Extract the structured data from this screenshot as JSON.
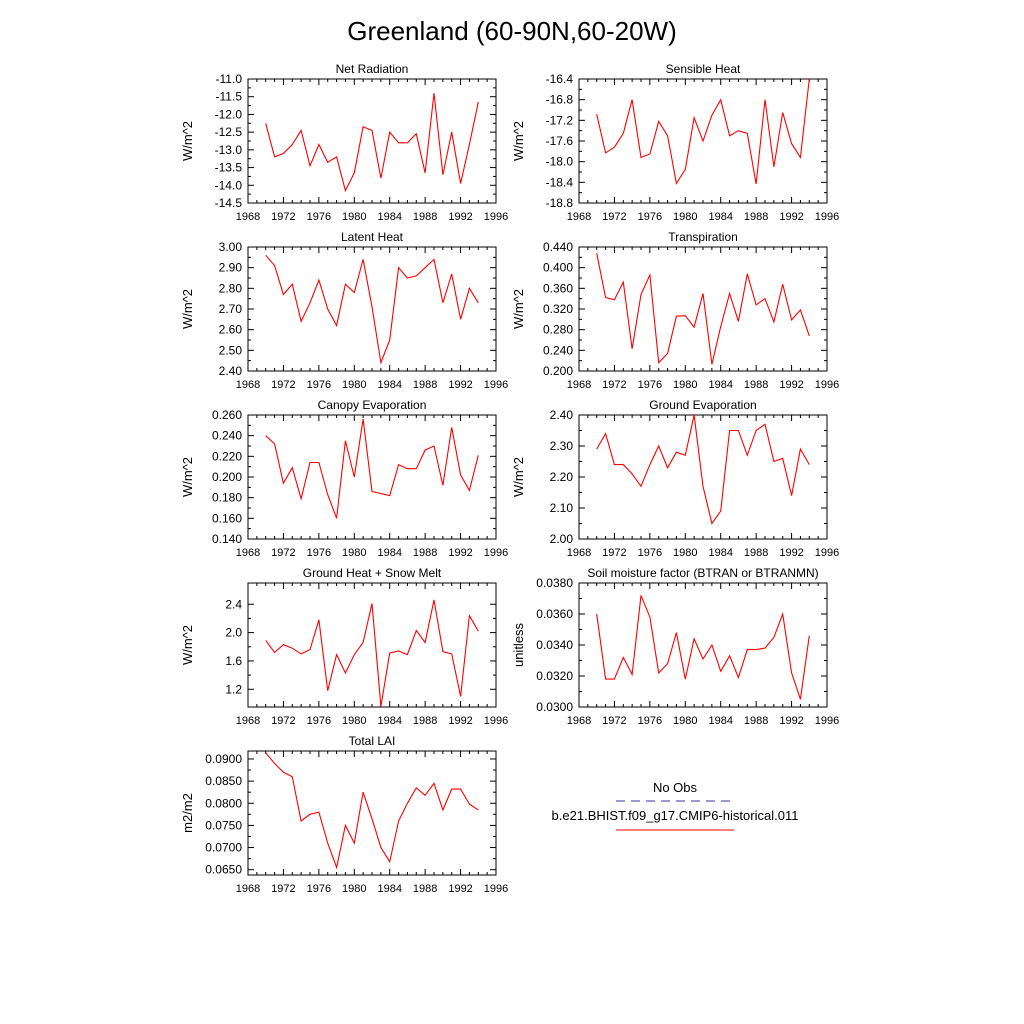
{
  "title": "Greenland (60-90N,60-20W)",
  "legend": {
    "entries": [
      {
        "label": "No Obs",
        "color": "#3333aa",
        "style": "dashed"
      },
      {
        "label": "b.e21.BHIST.f09_g17.CMIP6-historical.011",
        "color": "#ff0000",
        "style": "solid"
      }
    ]
  },
  "chart_data": [
    {
      "type": "line",
      "title": "Net Radiation",
      "ylabel": "W/m^2",
      "xlim": [
        1968,
        1996
      ],
      "ylim": [
        -14.5,
        -11.0
      ],
      "xticks": [
        1968,
        1972,
        1976,
        1980,
        1984,
        1988,
        1992,
        1996
      ],
      "xtick_labels": [
        "1968",
        "1972",
        "1976",
        "1980",
        "1984",
        "1988",
        "1992",
        "1996"
      ],
      "yticks": [
        -14.5,
        -14.0,
        -13.5,
        -13.0,
        -12.5,
        -12.0,
        -11.5,
        -11.0
      ],
      "ytick_labels": [
        "-14.5",
        "-14.0",
        "-13.5",
        "-13.0",
        "-12.5",
        "-12.0",
        "-11.5",
        "-11.0"
      ],
      "line_color": "#ff0000",
      "x": [
        1970,
        1971,
        1972,
        1973,
        1974,
        1975,
        1976,
        1977,
        1978,
        1979,
        1980,
        1981,
        1982,
        1983,
        1984,
        1985,
        1986,
        1987,
        1988,
        1989,
        1990,
        1991,
        1992,
        1993,
        1994
      ],
      "values": [
        -12.25,
        -13.2,
        -13.1,
        -12.85,
        -12.45,
        -13.45,
        -12.85,
        -13.35,
        -13.2,
        -14.15,
        -13.65,
        -12.35,
        -12.45,
        -13.8,
        -12.5,
        -12.8,
        -12.8,
        -12.55,
        -13.65,
        -11.4,
        -13.7,
        -12.5,
        -13.95,
        -12.85,
        -11.65
      ]
    },
    {
      "type": "line",
      "title": "Sensible Heat",
      "ylabel": "W/m^2",
      "xlim": [
        1968,
        1996
      ],
      "ylim": [
        -18.8,
        -16.4
      ],
      "xticks": [
        1968,
        1972,
        1976,
        1980,
        1984,
        1988,
        1992,
        1996
      ],
      "xtick_labels": [
        "1968",
        "1972",
        "1976",
        "1980",
        "1984",
        "1988",
        "1992",
        "1996"
      ],
      "yticks": [
        -18.8,
        -18.4,
        -18.0,
        -17.6,
        -17.2,
        -16.8,
        -16.4
      ],
      "ytick_labels": [
        "-18.8",
        "-18.4",
        "-18.0",
        "-17.6",
        "-17.2",
        "-16.8",
        "-16.4"
      ],
      "line_color": "#ff0000",
      "x": [
        1970,
        1971,
        1972,
        1973,
        1974,
        1975,
        1976,
        1977,
        1978,
        1979,
        1980,
        1981,
        1982,
        1983,
        1984,
        1985,
        1986,
        1987,
        1988,
        1989,
        1990,
        1991,
        1992,
        1993,
        1994
      ],
      "values": [
        -17.08,
        -17.83,
        -17.72,
        -17.45,
        -16.8,
        -17.92,
        -17.85,
        -17.22,
        -17.5,
        -18.42,
        -18.15,
        -17.15,
        -17.6,
        -17.1,
        -16.8,
        -17.5,
        -17.4,
        -17.45,
        -18.43,
        -16.8,
        -18.1,
        -17.05,
        -17.65,
        -17.92,
        -16.4
      ]
    },
    {
      "type": "line",
      "title": "Latent Heat",
      "ylabel": "W/m^2",
      "xlim": [
        1968,
        1996
      ],
      "ylim": [
        2.4,
        3.0
      ],
      "xticks": [
        1968,
        1972,
        1976,
        1980,
        1984,
        1988,
        1992,
        1996
      ],
      "xtick_labels": [
        "1968",
        "1972",
        "1976",
        "1980",
        "1984",
        "1988",
        "1992",
        "1996"
      ],
      "yticks": [
        2.4,
        2.5,
        2.6,
        2.7,
        2.8,
        2.9,
        3.0
      ],
      "ytick_labels": [
        "2.40",
        "2.50",
        "2.60",
        "2.70",
        "2.80",
        "2.90",
        "3.00"
      ],
      "line_color": "#ff0000",
      "x": [
        1970,
        1971,
        1972,
        1973,
        1974,
        1975,
        1976,
        1977,
        1978,
        1979,
        1980,
        1981,
        1982,
        1983,
        1984,
        1985,
        1986,
        1987,
        1988,
        1989,
        1990,
        1991,
        1992,
        1993,
        1994
      ],
      "values": [
        2.96,
        2.91,
        2.77,
        2.82,
        2.64,
        2.73,
        2.84,
        2.7,
        2.62,
        2.82,
        2.78,
        2.94,
        2.71,
        2.44,
        2.55,
        2.9,
        2.85,
        2.86,
        2.9,
        2.94,
        2.73,
        2.87,
        2.65,
        2.8,
        2.73
      ]
    },
    {
      "type": "line",
      "title": "Transpiration",
      "ylabel": "W/m^2",
      "xlim": [
        1968,
        1996
      ],
      "ylim": [
        0.2,
        0.44
      ],
      "xticks": [
        1968,
        1972,
        1976,
        1980,
        1984,
        1988,
        1992,
        1996
      ],
      "xtick_labels": [
        "1968",
        "1972",
        "1976",
        "1980",
        "1984",
        "1988",
        "1992",
        "1996"
      ],
      "yticks": [
        0.2,
        0.24,
        0.28,
        0.32,
        0.36,
        0.4,
        0.44
      ],
      "ytick_labels": [
        "0.200",
        "0.240",
        "0.280",
        "0.320",
        "0.360",
        "0.400",
        "0.440"
      ],
      "line_color": "#ff0000",
      "x": [
        1970,
        1971,
        1972,
        1973,
        1974,
        1975,
        1976,
        1977,
        1978,
        1979,
        1980,
        1981,
        1982,
        1983,
        1984,
        1985,
        1986,
        1987,
        1988,
        1989,
        1990,
        1991,
        1992,
        1993,
        1994
      ],
      "values": [
        0.428,
        0.342,
        0.338,
        0.372,
        0.243,
        0.348,
        0.386,
        0.216,
        0.234,
        0.306,
        0.307,
        0.285,
        0.35,
        0.213,
        0.286,
        0.35,
        0.296,
        0.388,
        0.328,
        0.34,
        0.295,
        0.368,
        0.299,
        0.318,
        0.268
      ]
    },
    {
      "type": "line",
      "title": "Canopy Evaporation",
      "ylabel": "W/m^2",
      "xlim": [
        1968,
        1996
      ],
      "ylim": [
        0.14,
        0.26
      ],
      "xticks": [
        1968,
        1972,
        1976,
        1980,
        1984,
        1988,
        1992,
        1996
      ],
      "xtick_labels": [
        "1968",
        "1972",
        "1976",
        "1980",
        "1984",
        "1988",
        "1992",
        "1996"
      ],
      "yticks": [
        0.14,
        0.16,
        0.18,
        0.2,
        0.22,
        0.24,
        0.26
      ],
      "ytick_labels": [
        "0.140",
        "0.160",
        "0.180",
        "0.200",
        "0.220",
        "0.240",
        "0.260"
      ],
      "line_color": "#ff0000",
      "x": [
        1970,
        1971,
        1972,
        1973,
        1974,
        1975,
        1976,
        1977,
        1978,
        1979,
        1980,
        1981,
        1982,
        1983,
        1984,
        1985,
        1986,
        1987,
        1988,
        1989,
        1990,
        1991,
        1992,
        1993,
        1994
      ],
      "values": [
        0.24,
        0.232,
        0.194,
        0.209,
        0.179,
        0.214,
        0.214,
        0.183,
        0.16,
        0.235,
        0.2,
        0.256,
        0.186,
        0.184,
        0.182,
        0.212,
        0.208,
        0.208,
        0.226,
        0.23,
        0.192,
        0.248,
        0.202,
        0.187,
        0.221
      ]
    },
    {
      "type": "line",
      "title": "Ground Evaporation",
      "ylabel": "W/m^2",
      "xlim": [
        1968,
        1996
      ],
      "ylim": [
        2.0,
        2.4
      ],
      "xticks": [
        1968,
        1972,
        1976,
        1980,
        1984,
        1988,
        1992,
        1996
      ],
      "xtick_labels": [
        "1968",
        "1972",
        "1976",
        "1980",
        "1984",
        "1988",
        "1992",
        "1996"
      ],
      "yticks": [
        2.0,
        2.1,
        2.2,
        2.3,
        2.4
      ],
      "ytick_labels": [
        "2.00",
        "2.10",
        "2.20",
        "2.30",
        "2.40"
      ],
      "line_color": "#ff0000",
      "x": [
        1970,
        1971,
        1972,
        1973,
        1974,
        1975,
        1976,
        1977,
        1978,
        1979,
        1980,
        1981,
        1982,
        1983,
        1984,
        1985,
        1986,
        1987,
        1988,
        1989,
        1990,
        1991,
        1992,
        1993,
        1994
      ],
      "values": [
        2.29,
        2.34,
        2.24,
        2.24,
        2.21,
        2.17,
        2.24,
        2.3,
        2.23,
        2.28,
        2.27,
        2.4,
        2.17,
        2.05,
        2.09,
        2.35,
        2.35,
        2.27,
        2.35,
        2.37,
        2.25,
        2.26,
        2.14,
        2.29,
        2.24
      ]
    },
    {
      "type": "line",
      "title": "Ground Heat + Snow Melt",
      "ylabel": "W/m^2",
      "xlim": [
        1968,
        1996
      ],
      "ylim": [
        0.95,
        2.7
      ],
      "xticks": [
        1968,
        1972,
        1976,
        1980,
        1984,
        1988,
        1992,
        1996
      ],
      "xtick_labels": [
        "1968",
        "1972",
        "1976",
        "1980",
        "1984",
        "1988",
        "1992",
        "1996"
      ],
      "yticks": [
        1.2,
        1.6,
        2.0,
        2.4
      ],
      "ytick_labels": [
        "1.2",
        "1.6",
        "2.0",
        "2.4"
      ],
      "line_color": "#ff0000",
      "x": [
        1970,
        1971,
        1972,
        1973,
        1974,
        1975,
        1976,
        1977,
        1978,
        1979,
        1980,
        1981,
        1982,
        1983,
        1984,
        1985,
        1986,
        1987,
        1988,
        1989,
        1990,
        1991,
        1992,
        1993,
        1994
      ],
      "values": [
        1.89,
        1.72,
        1.83,
        1.78,
        1.7,
        1.76,
        2.18,
        1.18,
        1.69,
        1.43,
        1.69,
        1.86,
        2.41,
        0.96,
        1.71,
        1.74,
        1.69,
        2.03,
        1.86,
        2.46,
        1.73,
        1.7,
        1.1,
        2.24,
        2.02
      ]
    },
    {
      "type": "line",
      "title": "Soil moisture factor (BTRAN or BTRANMN)",
      "ylabel": "unitless",
      "xlim": [
        1968,
        1996
      ],
      "ylim": [
        0.03,
        0.038
      ],
      "xticks": [
        1968,
        1972,
        1976,
        1980,
        1984,
        1988,
        1992,
        1996
      ],
      "xtick_labels": [
        "1968",
        "1972",
        "1976",
        "1980",
        "1984",
        "1988",
        "1992",
        "1996"
      ],
      "yticks": [
        0.03,
        0.032,
        0.034,
        0.036,
        0.038
      ],
      "ytick_labels": [
        "0.0300",
        "0.0320",
        "0.0340",
        "0.0360",
        "0.0380"
      ],
      "line_color": "#ff0000",
      "x": [
        1970,
        1971,
        1972,
        1973,
        1974,
        1975,
        1976,
        1977,
        1978,
        1979,
        1980,
        1981,
        1982,
        1983,
        1984,
        1985,
        1986,
        1987,
        1988,
        1989,
        1990,
        1991,
        1992,
        1993,
        1994
      ],
      "values": [
        0.036,
        0.0318,
        0.0318,
        0.0332,
        0.0321,
        0.0372,
        0.0358,
        0.0322,
        0.0328,
        0.0348,
        0.0318,
        0.0344,
        0.0331,
        0.034,
        0.0323,
        0.0333,
        0.0319,
        0.0337,
        0.0337,
        0.0338,
        0.0345,
        0.036,
        0.0322,
        0.0305,
        0.0346
      ]
    },
    {
      "type": "line",
      "title": "Total LAI",
      "ylabel": "m2/m2",
      "xlim": [
        1968,
        1996
      ],
      "ylim": [
        0.0638,
        0.0918
      ],
      "xticks": [
        1968,
        1972,
        1976,
        1980,
        1984,
        1988,
        1992,
        1996
      ],
      "xtick_labels": [
        "1968",
        "1972",
        "1976",
        "1980",
        "1984",
        "1988",
        "1992",
        "1996"
      ],
      "yticks": [
        0.065,
        0.07,
        0.075,
        0.08,
        0.085,
        0.09
      ],
      "ytick_labels": [
        "0.0650",
        "0.0700",
        "0.0750",
        "0.0800",
        "0.0850",
        "0.0900"
      ],
      "line_color": "#ff0000",
      "x": [
        1970,
        1971,
        1972,
        1973,
        1974,
        1975,
        1976,
        1977,
        1978,
        1979,
        1980,
        1981,
        1982,
        1983,
        1984,
        1985,
        1986,
        1987,
        1988,
        1989,
        1990,
        1991,
        1992,
        1993,
        1994
      ],
      "values": [
        0.0914,
        0.089,
        0.087,
        0.086,
        0.076,
        0.0775,
        0.078,
        0.071,
        0.0655,
        0.075,
        0.071,
        0.0825,
        0.0765,
        0.07,
        0.0668,
        0.076,
        0.08,
        0.0835,
        0.0818,
        0.0845,
        0.0785,
        0.0832,
        0.0832,
        0.0798,
        0.0785
      ]
    }
  ]
}
